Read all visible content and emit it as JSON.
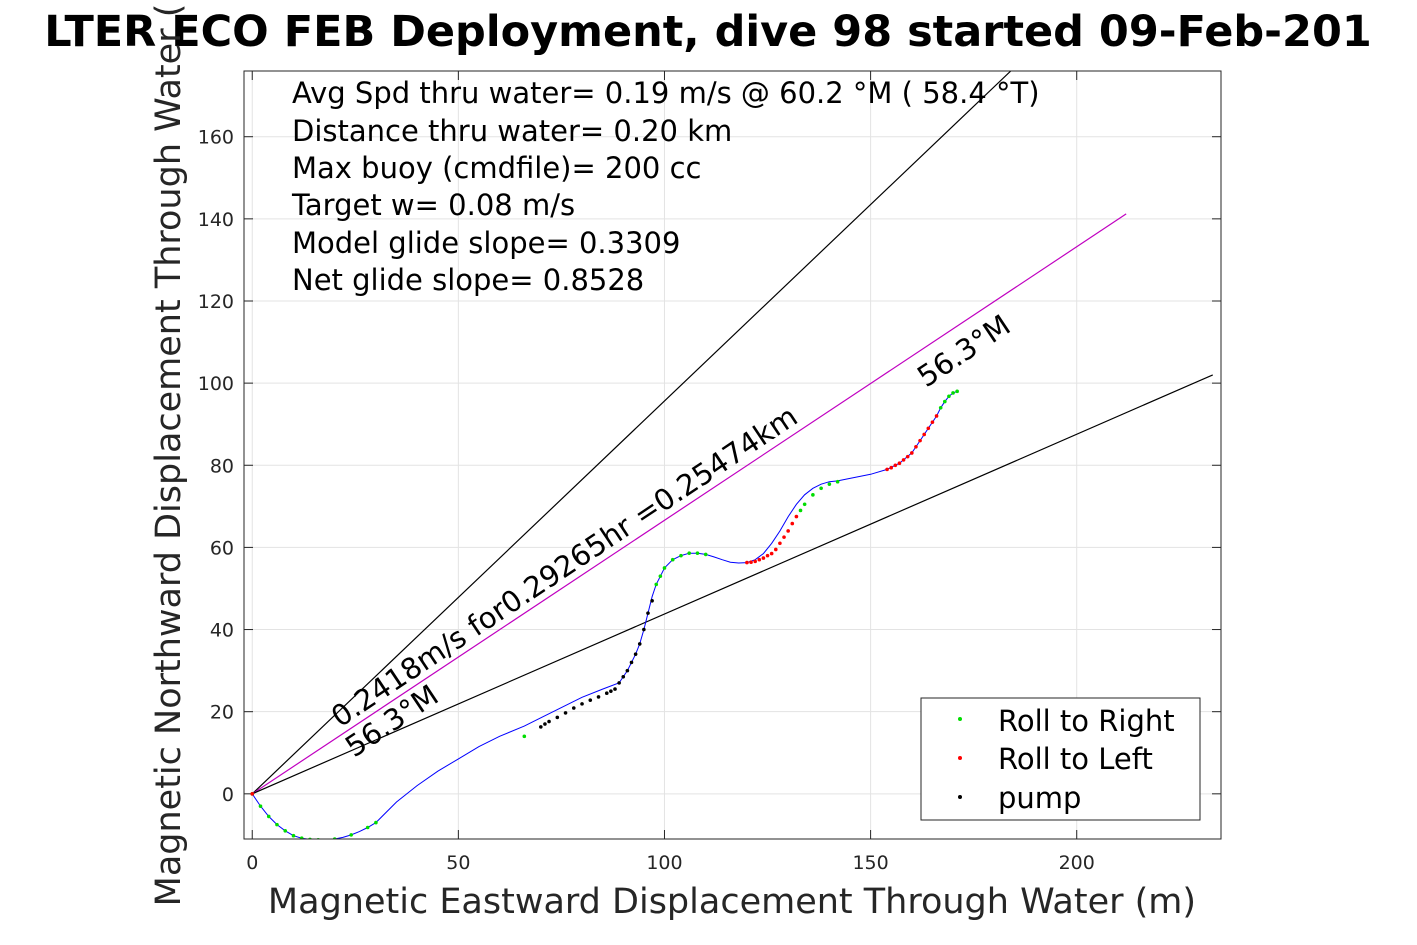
{
  "chart_data": {
    "type": "line",
    "title": "LTER ECO FEB Deployment, dive 98 started 09-Feb-201",
    "xlabel": "Magnetic Eastward Displacement Through Water (m)",
    "ylabel": "Magnetic Northward Displacement Through Water (",
    "xlim": [
      -2,
      235
    ],
    "ylim": [
      -11,
      176
    ],
    "xticks": [
      0,
      50,
      100,
      150,
      200
    ],
    "yticks": [
      0,
      20,
      40,
      60,
      80,
      100,
      120,
      140,
      160
    ],
    "grid": true,
    "info_lines": [
      "Avg Spd thru water=  0.19 m/s @  60.2 °M ( 58.4 °T)",
      "Distance thru water=  0.20 km",
      "Max buoy (cmdfile)= 200 cc",
      "Target w= 0.08 m/s",
      "Model glide slope= 0.3309",
      "Net glide slope= 0.8528"
    ],
    "annotations": {
      "speed_label": "0.2418m/s for0.29265hr =0.25474km",
      "heading_label_start": "56.3°M",
      "heading_label_end": "56.3°M"
    },
    "reference_lines": [
      {
        "name": "upper",
        "x": [
          0,
          184
        ],
        "y": [
          0,
          176
        ],
        "color": "#000000"
      },
      {
        "name": "heading",
        "x": [
          0,
          212
        ],
        "y": [
          0,
          141.2
        ],
        "color": "#c000c0"
      },
      {
        "name": "lower",
        "x": [
          0,
          233
        ],
        "y": [
          0,
          102
        ],
        "color": "#000000"
      }
    ],
    "track": {
      "name": "track",
      "color": "#0000ff",
      "x": [
        0,
        2,
        4,
        6,
        8,
        10,
        12,
        14,
        16,
        18,
        20,
        22,
        24,
        26,
        28,
        30,
        35,
        40,
        45,
        50,
        55,
        60,
        66,
        70,
        75,
        80,
        85,
        89,
        91,
        93,
        94,
        95,
        96,
        97,
        98,
        99,
        100,
        102,
        104,
        106,
        108,
        110,
        112,
        114,
        116,
        118,
        120,
        122,
        124,
        126,
        128,
        130,
        132,
        134,
        136,
        138,
        140,
        142,
        145,
        150,
        154,
        157,
        160,
        162,
        164,
        166,
        167,
        168,
        169,
        170,
        171
      ],
      "y": [
        0,
        -3,
        -5.5,
        -7.5,
        -9,
        -10.2,
        -10.8,
        -11.1,
        -11.2,
        -11.2,
        -11,
        -10.6,
        -10,
        -9.2,
        -8.2,
        -7,
        -2,
        2,
        5.5,
        8.5,
        11.5,
        14,
        16.5,
        18.5,
        21,
        23.5,
        25.5,
        27,
        30,
        34,
        36.5,
        40,
        44,
        48,
        51,
        53,
        55,
        57,
        58,
        58.6,
        58.6,
        58.3,
        57.7,
        57,
        56.4,
        56.2,
        56.3,
        57,
        58.5,
        61,
        64,
        67.5,
        70.5,
        72.8,
        74.4,
        75.4,
        76,
        76.2,
        76.8,
        77.8,
        79,
        80.5,
        83,
        86,
        89,
        92,
        94,
        95.5,
        96.8,
        97.6,
        98
      ]
    },
    "markers": {
      "roll_right": {
        "color": "#00dd00",
        "x": [
          0,
          2,
          4,
          6,
          8,
          10,
          12,
          14,
          16,
          20,
          24,
          28,
          30,
          66,
          98,
          99,
          100,
          102,
          104,
          106,
          108,
          110,
          133,
          134,
          136,
          138,
          140,
          142,
          167,
          168,
          169,
          170,
          171
        ],
        "y": [
          0,
          -3,
          -5.5,
          -7.5,
          -9,
          -10.2,
          -10.8,
          -11.1,
          -11.2,
          -11,
          -10,
          -8.2,
          -7,
          14,
          51,
          53,
          55,
          57,
          58,
          58.6,
          58.6,
          58.3,
          69,
          70.5,
          72.8,
          74.4,
          75.4,
          76,
          94,
          95.5,
          96.8,
          97.6,
          98
        ]
      },
      "roll_left": {
        "color": "#ff0000",
        "x": [
          0,
          120,
          121,
          122,
          123,
          124,
          125,
          126,
          127,
          128,
          129,
          130,
          131,
          132,
          154,
          155,
          156,
          157,
          158,
          159,
          160,
          161,
          162,
          163,
          164,
          165,
          166
        ],
        "y": [
          0,
          56.3,
          56.4,
          56.6,
          57,
          57.4,
          58,
          58.5,
          59.5,
          61,
          62.5,
          64,
          65.8,
          67.5,
          79,
          79.4,
          80,
          80.5,
          81.3,
          82.1,
          83,
          84.5,
          86,
          87.5,
          89,
          90.5,
          92
        ]
      },
      "pump": {
        "color": "#000000",
        "x": [
          70,
          71,
          72,
          74,
          76,
          78,
          80,
          82,
          84,
          86,
          87,
          88,
          89,
          90,
          91,
          92,
          93,
          94,
          95,
          96,
          97
        ],
        "y": [
          16.3,
          17,
          17.6,
          18.6,
          19.7,
          20.9,
          21.9,
          22.8,
          23.6,
          24.5,
          25,
          25.5,
          27,
          28.5,
          30,
          32,
          34,
          36.5,
          40,
          44,
          47
        ]
      }
    },
    "legend": {
      "position": "bottom-right",
      "entries": [
        {
          "label": "Roll to Right",
          "color": "#00dd00"
        },
        {
          "label": "Roll to Left",
          "color": "#ff0000"
        },
        {
          "label": "pump",
          "color": "#000000"
        }
      ]
    }
  }
}
